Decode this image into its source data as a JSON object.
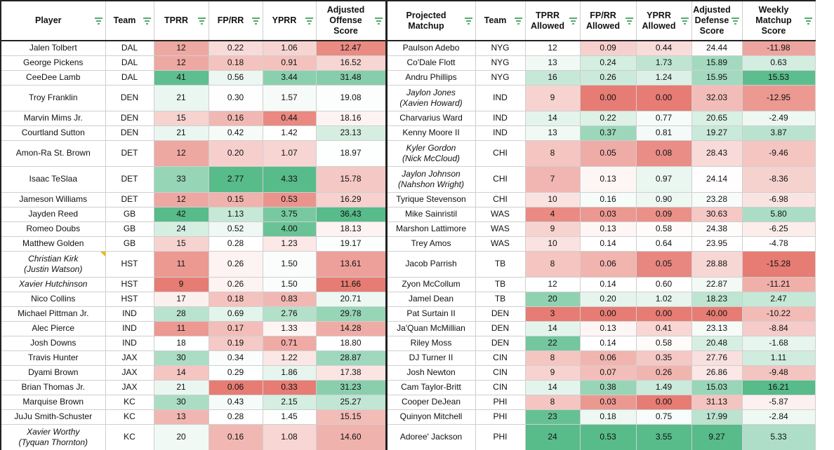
{
  "headers": {
    "player": "Player",
    "team": "Team",
    "tprr": "TPRR",
    "fprr": "FP/RR",
    "yprr": "YPRR",
    "aos": [
      "Adjusted",
      "Offense",
      "Score"
    ],
    "matchup": [
      "Projected",
      "Matchup"
    ],
    "dteam": "Team",
    "tprra": [
      "TPRR",
      "Allowed"
    ],
    "fprra": [
      "FP/RR",
      "Allowed"
    ],
    "yprra": [
      "YPRR",
      "Allowed"
    ],
    "ads": [
      "Adjusted",
      "Defense",
      "Score"
    ],
    "wms": [
      "Weekly",
      "Matchup",
      "Score"
    ]
  },
  "colors": {
    "green_strong": "#57bb8a",
    "red_strong": "#e67c73",
    "white": "#ffffff",
    "note_marker": "#f2b600",
    "grid": "#cfcfcf",
    "border": "#222222"
  },
  "rows": [
    {
      "player": [
        "Jalen Tolbert"
      ],
      "team": "DAL",
      "tprr": "12",
      "fprr": "0.22",
      "yprr": "1.06",
      "aos": "12.47",
      "def": [
        "Paulson Adebo"
      ],
      "dteam": "NYG",
      "tprra": "12",
      "fprra": "0.09",
      "yprra": "0.44",
      "ads": "24.44",
      "wms": "-11.98"
    },
    {
      "player": [
        "George Pickens"
      ],
      "team": "DAL",
      "tprr": "12",
      "fprr": "0.18",
      "yprr": "0.91",
      "aos": "16.52",
      "def": [
        "Co'Dale Flott"
      ],
      "dteam": "NYG",
      "tprra": "13",
      "fprra": "0.24",
      "yprra": "1.73",
      "ads": "15.89",
      "wms": "0.63"
    },
    {
      "player": [
        "CeeDee Lamb"
      ],
      "team": "DAL",
      "tprr": "41",
      "fprr": "0.56",
      "yprr": "3.44",
      "aos": "31.48",
      "def": [
        "Andru Phillips"
      ],
      "dteam": "NYG",
      "tprra": "16",
      "fprra": "0.26",
      "yprra": "1.24",
      "ads": "15.95",
      "wms": "15.53"
    },
    {
      "player": [
        "Troy Franklin"
      ],
      "team": "DEN",
      "tprr": "21",
      "fprr": "0.30",
      "yprr": "1.57",
      "aos": "19.08",
      "def": [
        "Jaylon Jones",
        "(Xavien Howard)"
      ],
      "defItalic": true,
      "dteam": "IND",
      "tprra": "9",
      "fprra": "0.00",
      "yprra": "0.00",
      "ads": "32.03",
      "wms": "-12.95"
    },
    {
      "player": [
        "Marvin Mims Jr."
      ],
      "team": "DEN",
      "tprr": "15",
      "fprr": "0.16",
      "yprr": "0.44",
      "aos": "18.16",
      "def": [
        "Charvarius Ward"
      ],
      "dteam": "IND",
      "tprra": "14",
      "fprra": "0.22",
      "yprra": "0.77",
      "ads": "20.65",
      "wms": "-2.49"
    },
    {
      "player": [
        "Courtland Sutton"
      ],
      "team": "DEN",
      "tprr": "21",
      "fprr": "0.42",
      "yprr": "1.42",
      "aos": "23.13",
      "def": [
        "Kenny Moore II"
      ],
      "dteam": "IND",
      "tprra": "13",
      "fprra": "0.37",
      "yprra": "0.81",
      "ads": "19.27",
      "wms": "3.87"
    },
    {
      "player": [
        "Amon-Ra St. Brown"
      ],
      "team": "DET",
      "tprr": "12",
      "fprr": "0.20",
      "yprr": "1.07",
      "aos": "18.97",
      "def": [
        "Kyler Gordon",
        "(Nick McCloud)"
      ],
      "defItalic": true,
      "dteam": "CHI",
      "tprra": "8",
      "fprra": "0.05",
      "yprra": "0.08",
      "ads": "28.43",
      "wms": "-9.46"
    },
    {
      "player": [
        "Isaac TeSlaa"
      ],
      "team": "DET",
      "tprr": "33",
      "fprr": "2.77",
      "yprr": "4.33",
      "aos": "15.78",
      "def": [
        "Jaylon Johnson",
        "(Nahshon Wright)"
      ],
      "defItalic": true,
      "dteam": "CHI",
      "tprra": "7",
      "fprra": "0.13",
      "yprra": "0.97",
      "ads": "24.14",
      "wms": "-8.36"
    },
    {
      "player": [
        "Jameson Williams"
      ],
      "team": "DET",
      "tprr": "12",
      "fprr": "0.15",
      "yprr": "0.53",
      "aos": "16.29",
      "def": [
        "Tyrique Stevenson"
      ],
      "dteam": "CHI",
      "tprra": "10",
      "fprra": "0.16",
      "yprra": "0.90",
      "ads": "23.28",
      "wms": "-6.98"
    },
    {
      "player": [
        "Jayden Reed"
      ],
      "team": "GB",
      "tprr": "42",
      "fprr": "1.13",
      "yprr": "3.75",
      "aos": "36.43",
      "def": [
        "Mike Sainristil"
      ],
      "dteam": "WAS",
      "tprra": "4",
      "fprra": "0.03",
      "yprra": "0.09",
      "ads": "30.63",
      "wms": "5.80"
    },
    {
      "player": [
        "Romeo Doubs"
      ],
      "team": "GB",
      "tprr": "24",
      "fprr": "0.52",
      "yprr": "4.00",
      "aos": "18.13",
      "def": [
        "Marshon Lattimore"
      ],
      "dteam": "WAS",
      "tprra": "9",
      "fprra": "0.13",
      "yprra": "0.58",
      "ads": "24.38",
      "wms": "-6.25"
    },
    {
      "player": [
        "Matthew Golden"
      ],
      "team": "GB",
      "tprr": "15",
      "fprr": "0.28",
      "yprr": "1.23",
      "aos": "19.17",
      "def": [
        "Trey Amos"
      ],
      "dteam": "WAS",
      "tprra": "10",
      "fprra": "0.14",
      "yprra": "0.64",
      "ads": "23.95",
      "wms": "-4.78"
    },
    {
      "player": [
        "Christian Kirk",
        "(Justin Watson)"
      ],
      "playerItalic": true,
      "note": true,
      "team": "HST",
      "tprr": "11",
      "fprr": "0.26",
      "yprr": "1.50",
      "aos": "13.61",
      "def": [
        "Jacob Parrish"
      ],
      "dteam": "TB",
      "tprra": "8",
      "fprra": "0.06",
      "yprra": "0.05",
      "ads": "28.88",
      "wms": "-15.28"
    },
    {
      "player": [
        "Xavier Hutchinson"
      ],
      "playerItalic": true,
      "team": "HST",
      "tprr": "9",
      "fprr": "0.26",
      "yprr": "1.50",
      "aos": "11.66",
      "def": [
        "Zyon McCollum"
      ],
      "dteam": "TB",
      "tprra": "12",
      "fprra": "0.14",
      "yprra": "0.60",
      "ads": "22.87",
      "wms": "-11.21"
    },
    {
      "player": [
        "Nico Collins"
      ],
      "team": "HST",
      "tprr": "17",
      "fprr": "0.18",
      "yprr": "0.83",
      "aos": "20.71",
      "def": [
        "Jamel Dean"
      ],
      "dteam": "TB",
      "tprra": "20",
      "fprra": "0.20",
      "yprra": "1.02",
      "ads": "18.23",
      "wms": "2.47"
    },
    {
      "player": [
        "Michael Pittman Jr."
      ],
      "team": "IND",
      "tprr": "28",
      "fprr": "0.69",
      "yprr": "2.76",
      "aos": "29.78",
      "def": [
        "Pat Surtain II"
      ],
      "dteam": "DEN",
      "tprra": "3",
      "fprra": "0.00",
      "yprra": "0.00",
      "ads": "40.00",
      "wms": "-10.22"
    },
    {
      "player": [
        "Alec Pierce"
      ],
      "team": "IND",
      "tprr": "11",
      "fprr": "0.17",
      "yprr": "1.33",
      "aos": "14.28",
      "def": [
        "Ja'Quan McMillian"
      ],
      "dteam": "DEN",
      "tprra": "14",
      "fprra": "0.13",
      "yprra": "0.41",
      "ads": "23.13",
      "wms": "-8.84"
    },
    {
      "player": [
        "Josh Downs"
      ],
      "team": "IND",
      "tprr": "18",
      "fprr": "0.19",
      "yprr": "0.71",
      "aos": "18.80",
      "def": [
        "Riley Moss"
      ],
      "dteam": "DEN",
      "tprra": "22",
      "fprra": "0.14",
      "yprra": "0.58",
      "ads": "20.48",
      "wms": "-1.68"
    },
    {
      "player": [
        "Travis Hunter"
      ],
      "team": "JAX",
      "tprr": "30",
      "fprr": "0.34",
      "yprr": "1.22",
      "aos": "28.87",
      "def": [
        "DJ Turner II"
      ],
      "dteam": "CIN",
      "tprra": "8",
      "fprra": "0.06",
      "yprra": "0.35",
      "ads": "27.76",
      "wms": "1.11"
    },
    {
      "player": [
        "Dyami Brown"
      ],
      "team": "JAX",
      "tprr": "14",
      "fprr": "0.29",
      "yprr": "1.86",
      "aos": "17.38",
      "def": [
        "Josh Newton"
      ],
      "dteam": "CIN",
      "tprra": "9",
      "fprra": "0.07",
      "yprra": "0.26",
      "ads": "26.86",
      "wms": "-9.48"
    },
    {
      "player": [
        "Brian Thomas Jr."
      ],
      "team": "JAX",
      "tprr": "21",
      "fprr": "0.06",
      "yprr": "0.33",
      "aos": "31.23",
      "def": [
        "Cam Taylor-Britt"
      ],
      "dteam": "CIN",
      "tprra": "14",
      "fprra": "0.38",
      "yprra": "1.49",
      "ads": "15.03",
      "wms": "16.21"
    },
    {
      "player": [
        "Marquise Brown"
      ],
      "team": "KC",
      "tprr": "30",
      "fprr": "0.43",
      "yprr": "2.15",
      "aos": "25.27",
      "def": [
        "Cooper DeJean"
      ],
      "dteam": "PHI",
      "tprra": "8",
      "fprra": "0.03",
      "yprra": "0.00",
      "ads": "31.13",
      "wms": "-5.87"
    },
    {
      "player": [
        "JuJu Smith-Schuster"
      ],
      "team": "KC",
      "tprr": "13",
      "fprr": "0.28",
      "yprr": "1.45",
      "aos": "15.15",
      "def": [
        "Quinyon Mitchell"
      ],
      "dteam": "PHI",
      "tprra": "23",
      "fprra": "0.18",
      "yprra": "0.75",
      "ads": "17.99",
      "wms": "-2.84"
    },
    {
      "player": [
        "Xavier Worthy",
        "(Tyquan Thornton)"
      ],
      "playerItalic": true,
      "team": "KC",
      "tprr": "20",
      "fprr": "0.16",
      "yprr": "1.08",
      "aos": "14.60",
      "def": [
        "Adoree' Jackson"
      ],
      "dteam": "PHI",
      "tprra": "24",
      "fprra": "0.53",
      "yprra": "3.55",
      "ads": "9.27",
      "wms": "5.33"
    }
  ]
}
